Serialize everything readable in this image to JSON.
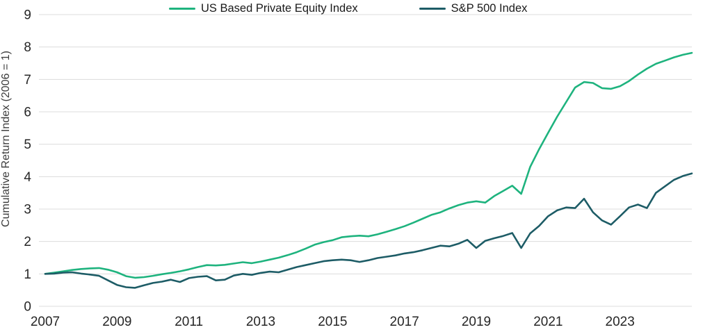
{
  "chart_data": {
    "type": "line",
    "title": "",
    "xlabel": "",
    "ylabel": "Cumulative Return Index (2006 = 1)",
    "ylim": [
      0,
      9
    ],
    "xlim": [
      2007,
      2025
    ],
    "yticks": [
      0,
      1,
      2,
      3,
      4,
      5,
      6,
      7,
      8,
      9
    ],
    "xticks": [
      2007,
      2009,
      2011,
      2013,
      2015,
      2017,
      2019,
      2021,
      2023
    ],
    "grid": "horizontal",
    "legend_position": "top-center",
    "grid_color": "#dcdcdc",
    "tick_text_color": "#262626",
    "x_frequency": "quarterly",
    "x": [
      2007,
      2007.25,
      2007.5,
      2007.75,
      2008,
      2008.25,
      2008.5,
      2008.75,
      2009,
      2009.25,
      2009.5,
      2009.75,
      2010,
      2010.25,
      2010.5,
      2010.75,
      2011,
      2011.25,
      2011.5,
      2011.75,
      2012,
      2012.25,
      2012.5,
      2012.75,
      2013,
      2013.25,
      2013.5,
      2013.75,
      2014,
      2014.25,
      2014.5,
      2014.75,
      2015,
      2015.25,
      2015.5,
      2015.75,
      2016,
      2016.25,
      2016.5,
      2016.75,
      2017,
      2017.25,
      2017.5,
      2017.75,
      2018,
      2018.25,
      2018.5,
      2018.75,
      2019,
      2019.25,
      2019.5,
      2019.75,
      2020,
      2020.25,
      2020.5,
      2020.75,
      2021,
      2021.25,
      2021.5,
      2021.75,
      2022,
      2022.25,
      2022.5,
      2022.75,
      2023,
      2023.25,
      2023.5,
      2023.75,
      2024,
      2024.25,
      2024.5,
      2024.75,
      2025
    ],
    "series": [
      {
        "name": "US Based Private Equity Index",
        "color": "#1eb37e",
        "values": [
          1.0,
          1.04,
          1.08,
          1.12,
          1.15,
          1.17,
          1.18,
          1.13,
          1.05,
          0.93,
          0.88,
          0.9,
          0.94,
          0.99,
          1.03,
          1.08,
          1.14,
          1.21,
          1.27,
          1.26,
          1.28,
          1.32,
          1.36,
          1.33,
          1.38,
          1.44,
          1.5,
          1.58,
          1.67,
          1.78,
          1.9,
          1.98,
          2.04,
          2.13,
          2.16,
          2.18,
          2.16,
          2.22,
          2.3,
          2.38,
          2.47,
          2.58,
          2.7,
          2.82,
          2.9,
          3.02,
          3.12,
          3.2,
          3.24,
          3.2,
          3.4,
          3.56,
          3.72,
          3.47,
          4.3,
          4.85,
          5.35,
          5.85,
          6.3,
          6.75,
          6.92,
          6.89,
          6.73,
          6.71,
          6.79,
          6.95,
          7.15,
          7.33,
          7.48,
          7.58,
          7.68,
          7.76,
          7.82
        ]
      },
      {
        "name": "S&P 500 Index",
        "color": "#1d5c66",
        "values": [
          1.0,
          1.01,
          1.04,
          1.05,
          1.01,
          0.98,
          0.94,
          0.8,
          0.66,
          0.59,
          0.57,
          0.65,
          0.72,
          0.76,
          0.82,
          0.75,
          0.87,
          0.91,
          0.93,
          0.8,
          0.82,
          0.95,
          1.0,
          0.97,
          1.03,
          1.07,
          1.05,
          1.13,
          1.21,
          1.27,
          1.33,
          1.39,
          1.42,
          1.44,
          1.42,
          1.37,
          1.42,
          1.49,
          1.53,
          1.57,
          1.63,
          1.67,
          1.73,
          1.8,
          1.87,
          1.85,
          1.93,
          2.05,
          1.8,
          2.02,
          2.1,
          2.17,
          2.26,
          1.8,
          2.25,
          2.48,
          2.78,
          2.96,
          3.05,
          3.03,
          3.32,
          2.9,
          2.65,
          2.52,
          2.78,
          3.05,
          3.14,
          3.03,
          3.5,
          3.7,
          3.9,
          4.02,
          4.1
        ]
      }
    ]
  }
}
